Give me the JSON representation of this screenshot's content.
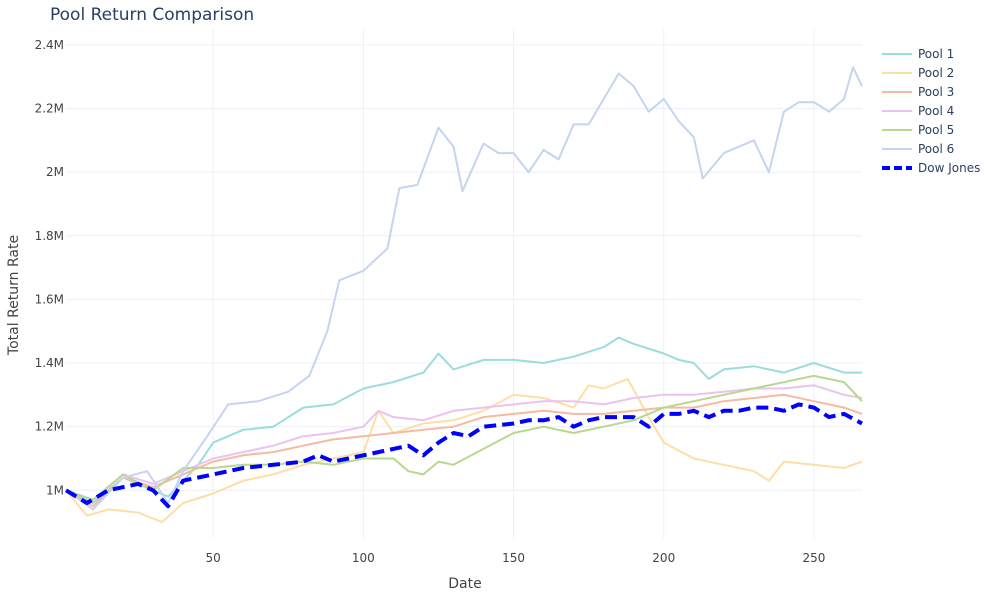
{
  "chart_data": {
    "type": "line",
    "title": "Pool Return Comparison",
    "xlabel": "Date",
    "ylabel": "Total Return Rate",
    "xlim": [
      1,
      266
    ],
    "ylim": [
      850000,
      2450000
    ],
    "x_ticks": [
      50,
      100,
      150,
      200,
      250
    ],
    "x_tick_labels": [
      "50",
      "100",
      "150",
      "200",
      "250"
    ],
    "y_ticks": [
      1000000,
      1200000,
      1400000,
      1600000,
      1800000,
      2000000,
      2200000,
      2400000
    ],
    "y_tick_labels": [
      "1M",
      "1.2M",
      "1.4M",
      "1.6M",
      "1.8M",
      "2M",
      "2.2M",
      "2.4M"
    ],
    "grid": true,
    "legend_position": "top-right",
    "series": [
      {
        "name": "Pool 1",
        "color": "#9bdcdc",
        "dash": "solid",
        "points": [
          [
            1,
            1000000
          ],
          [
            10,
            960000
          ],
          [
            20,
            1040000
          ],
          [
            30,
            1000000
          ],
          [
            35,
            980000
          ],
          [
            45,
            1080000
          ],
          [
            50,
            1150000
          ],
          [
            60,
            1190000
          ],
          [
            70,
            1200000
          ],
          [
            80,
            1260000
          ],
          [
            90,
            1270000
          ],
          [
            100,
            1320000
          ],
          [
            110,
            1340000
          ],
          [
            120,
            1370000
          ],
          [
            125,
            1430000
          ],
          [
            130,
            1380000
          ],
          [
            140,
            1410000
          ],
          [
            150,
            1410000
          ],
          [
            160,
            1400000
          ],
          [
            170,
            1420000
          ],
          [
            180,
            1450000
          ],
          [
            185,
            1480000
          ],
          [
            190,
            1460000
          ],
          [
            200,
            1430000
          ],
          [
            205,
            1410000
          ],
          [
            210,
            1400000
          ],
          [
            215,
            1350000
          ],
          [
            220,
            1380000
          ],
          [
            230,
            1390000
          ],
          [
            240,
            1370000
          ],
          [
            250,
            1400000
          ],
          [
            260,
            1370000
          ],
          [
            266,
            1370000
          ]
        ]
      },
      {
        "name": "Pool 2",
        "color": "#fddfa6",
        "dash": "solid",
        "points": [
          [
            1,
            1000000
          ],
          [
            8,
            920000
          ],
          [
            15,
            940000
          ],
          [
            25,
            930000
          ],
          [
            33,
            900000
          ],
          [
            40,
            960000
          ],
          [
            50,
            990000
          ],
          [
            60,
            1030000
          ],
          [
            70,
            1050000
          ],
          [
            80,
            1080000
          ],
          [
            90,
            1100000
          ],
          [
            100,
            1120000
          ],
          [
            105,
            1250000
          ],
          [
            110,
            1180000
          ],
          [
            120,
            1210000
          ],
          [
            130,
            1220000
          ],
          [
            140,
            1250000
          ],
          [
            150,
            1300000
          ],
          [
            160,
            1290000
          ],
          [
            170,
            1260000
          ],
          [
            175,
            1330000
          ],
          [
            180,
            1320000
          ],
          [
            188,
            1350000
          ],
          [
            195,
            1230000
          ],
          [
            200,
            1150000
          ],
          [
            210,
            1100000
          ],
          [
            220,
            1080000
          ],
          [
            230,
            1060000
          ],
          [
            235,
            1030000
          ],
          [
            240,
            1090000
          ],
          [
            250,
            1080000
          ],
          [
            260,
            1070000
          ],
          [
            266,
            1090000
          ]
        ]
      },
      {
        "name": "Pool 3",
        "color": "#f6b9a1",
        "dash": "solid",
        "points": [
          [
            1,
            1000000
          ],
          [
            10,
            950000
          ],
          [
            20,
            1040000
          ],
          [
            30,
            1010000
          ],
          [
            40,
            1050000
          ],
          [
            50,
            1090000
          ],
          [
            60,
            1110000
          ],
          [
            70,
            1120000
          ],
          [
            80,
            1140000
          ],
          [
            90,
            1160000
          ],
          [
            100,
            1170000
          ],
          [
            110,
            1180000
          ],
          [
            120,
            1190000
          ],
          [
            130,
            1200000
          ],
          [
            140,
            1230000
          ],
          [
            150,
            1240000
          ],
          [
            160,
            1250000
          ],
          [
            170,
            1240000
          ],
          [
            180,
            1240000
          ],
          [
            190,
            1250000
          ],
          [
            200,
            1260000
          ],
          [
            210,
            1260000
          ],
          [
            220,
            1280000
          ],
          [
            230,
            1290000
          ],
          [
            240,
            1300000
          ],
          [
            250,
            1280000
          ],
          [
            260,
            1260000
          ],
          [
            266,
            1240000
          ]
        ]
      },
      {
        "name": "Pool 4",
        "color": "#eac3f0",
        "dash": "solid",
        "points": [
          [
            1,
            1000000
          ],
          [
            10,
            970000
          ],
          [
            20,
            1050000
          ],
          [
            30,
            1020000
          ],
          [
            40,
            1060000
          ],
          [
            50,
            1100000
          ],
          [
            60,
            1120000
          ],
          [
            70,
            1140000
          ],
          [
            80,
            1170000
          ],
          [
            90,
            1180000
          ],
          [
            100,
            1200000
          ],
          [
            105,
            1250000
          ],
          [
            110,
            1230000
          ],
          [
            120,
            1220000
          ],
          [
            130,
            1250000
          ],
          [
            140,
            1260000
          ],
          [
            150,
            1270000
          ],
          [
            160,
            1280000
          ],
          [
            170,
            1280000
          ],
          [
            180,
            1270000
          ],
          [
            190,
            1290000
          ],
          [
            200,
            1300000
          ],
          [
            210,
            1300000
          ],
          [
            220,
            1310000
          ],
          [
            230,
            1320000
          ],
          [
            240,
            1320000
          ],
          [
            250,
            1330000
          ],
          [
            260,
            1300000
          ],
          [
            266,
            1290000
          ]
        ]
      },
      {
        "name": "Pool 5",
        "color": "#b8d88e",
        "dash": "solid",
        "points": [
          [
            1,
            1000000
          ],
          [
            10,
            970000
          ],
          [
            20,
            1050000
          ],
          [
            30,
            1000000
          ],
          [
            40,
            1070000
          ],
          [
            50,
            1070000
          ],
          [
            60,
            1080000
          ],
          [
            70,
            1080000
          ],
          [
            80,
            1090000
          ],
          [
            90,
            1080000
          ],
          [
            100,
            1100000
          ],
          [
            110,
            1100000
          ],
          [
            115,
            1060000
          ],
          [
            120,
            1050000
          ],
          [
            125,
            1090000
          ],
          [
            130,
            1080000
          ],
          [
            140,
            1130000
          ],
          [
            150,
            1180000
          ],
          [
            160,
            1200000
          ],
          [
            170,
            1180000
          ],
          [
            180,
            1200000
          ],
          [
            190,
            1220000
          ],
          [
            200,
            1260000
          ],
          [
            210,
            1280000
          ],
          [
            220,
            1300000
          ],
          [
            230,
            1320000
          ],
          [
            240,
            1340000
          ],
          [
            250,
            1360000
          ],
          [
            260,
            1340000
          ],
          [
            266,
            1280000
          ]
        ]
      },
      {
        "name": "Pool 6",
        "color": "#c5d4f1",
        "dash": "solid",
        "points": [
          [
            1,
            1000000
          ],
          [
            10,
            940000
          ],
          [
            20,
            1040000
          ],
          [
            28,
            1060000
          ],
          [
            35,
            960000
          ],
          [
            40,
            1060000
          ],
          [
            48,
            1170000
          ],
          [
            55,
            1270000
          ],
          [
            65,
            1280000
          ],
          [
            75,
            1310000
          ],
          [
            82,
            1360000
          ],
          [
            88,
            1500000
          ],
          [
            92,
            1660000
          ],
          [
            100,
            1690000
          ],
          [
            108,
            1760000
          ],
          [
            112,
            1950000
          ],
          [
            118,
            1960000
          ],
          [
            125,
            2140000
          ],
          [
            130,
            2080000
          ],
          [
            133,
            1940000
          ],
          [
            140,
            2090000
          ],
          [
            145,
            2060000
          ],
          [
            150,
            2060000
          ],
          [
            155,
            2000000
          ],
          [
            160,
            2070000
          ],
          [
            165,
            2040000
          ],
          [
            170,
            2150000
          ],
          [
            175,
            2150000
          ],
          [
            180,
            2230000
          ],
          [
            185,
            2310000
          ],
          [
            190,
            2270000
          ],
          [
            195,
            2190000
          ],
          [
            200,
            2230000
          ],
          [
            205,
            2160000
          ],
          [
            210,
            2110000
          ],
          [
            213,
            1980000
          ],
          [
            220,
            2060000
          ],
          [
            225,
            2080000
          ],
          [
            230,
            2100000
          ],
          [
            235,
            2000000
          ],
          [
            240,
            2190000
          ],
          [
            245,
            2220000
          ],
          [
            250,
            2220000
          ],
          [
            255,
            2190000
          ],
          [
            260,
            2230000
          ],
          [
            263,
            2330000
          ],
          [
            266,
            2270000
          ]
        ]
      },
      {
        "name": "Dow Jones",
        "color": "#0000ff",
        "dash": "dash",
        "points": [
          [
            1,
            1000000
          ],
          [
            8,
            960000
          ],
          [
            15,
            1000000
          ],
          [
            25,
            1020000
          ],
          [
            30,
            1000000
          ],
          [
            35,
            950000
          ],
          [
            40,
            1030000
          ],
          [
            50,
            1050000
          ],
          [
            60,
            1070000
          ],
          [
            70,
            1080000
          ],
          [
            80,
            1090000
          ],
          [
            85,
            1110000
          ],
          [
            90,
            1090000
          ],
          [
            95,
            1100000
          ],
          [
            100,
            1110000
          ],
          [
            110,
            1130000
          ],
          [
            115,
            1140000
          ],
          [
            120,
            1110000
          ],
          [
            125,
            1150000
          ],
          [
            130,
            1180000
          ],
          [
            135,
            1170000
          ],
          [
            140,
            1200000
          ],
          [
            150,
            1210000
          ],
          [
            155,
            1220000
          ],
          [
            160,
            1220000
          ],
          [
            165,
            1230000
          ],
          [
            170,
            1200000
          ],
          [
            175,
            1220000
          ],
          [
            180,
            1230000
          ],
          [
            185,
            1230000
          ],
          [
            190,
            1230000
          ],
          [
            195,
            1200000
          ],
          [
            200,
            1240000
          ],
          [
            205,
            1240000
          ],
          [
            210,
            1250000
          ],
          [
            215,
            1230000
          ],
          [
            220,
            1250000
          ],
          [
            225,
            1250000
          ],
          [
            230,
            1260000
          ],
          [
            235,
            1260000
          ],
          [
            240,
            1250000
          ],
          [
            245,
            1270000
          ],
          [
            250,
            1260000
          ],
          [
            255,
            1230000
          ],
          [
            260,
            1240000
          ],
          [
            266,
            1210000
          ]
        ]
      }
    ]
  }
}
